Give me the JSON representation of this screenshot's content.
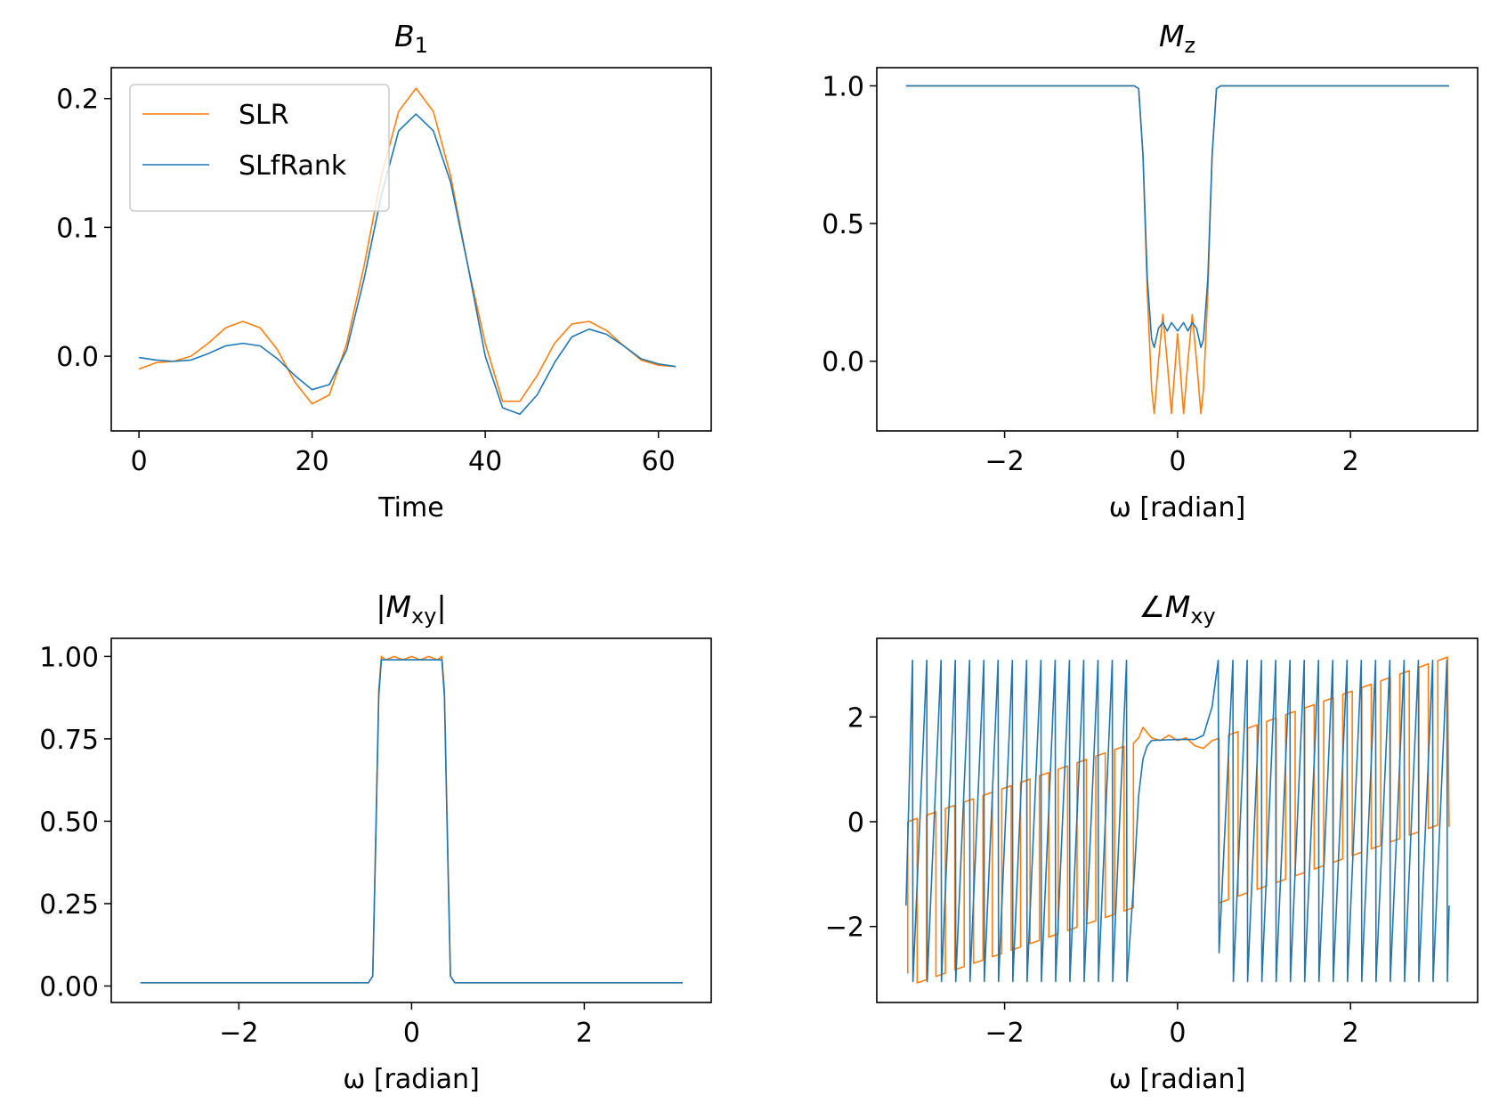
{
  "chart_data": [
    {
      "type": "line",
      "title": {
        "main": "B",
        "sub": "1"
      },
      "xlabel": "Time",
      "x": [
        0,
        2,
        4,
        6,
        8,
        10,
        12,
        14,
        16,
        18,
        20,
        22,
        24,
        26,
        28,
        30,
        32,
        34,
        36,
        38,
        40,
        42,
        44,
        46,
        48,
        50,
        52,
        54,
        56,
        58,
        60,
        62
      ],
      "series": [
        {
          "name": "SLR",
          "color": "#ff7f0e",
          "values": [
            -0.01,
            -0.005,
            -0.004,
            0.0,
            0.01,
            0.022,
            0.027,
            0.022,
            0.005,
            -0.02,
            -0.037,
            -0.03,
            0.01,
            0.07,
            0.14,
            0.19,
            0.208,
            0.19,
            0.14,
            0.07,
            0.01,
            -0.035,
            -0.035,
            -0.015,
            0.01,
            0.025,
            0.027,
            0.02,
            0.008,
            -0.003,
            -0.007,
            -0.008
          ]
        },
        {
          "name": "SLfRank",
          "color": "#1f77b4",
          "values": [
            -0.001,
            -0.003,
            -0.004,
            -0.003,
            0.002,
            0.008,
            0.01,
            0.008,
            -0.002,
            -0.015,
            -0.026,
            -0.022,
            0.005,
            0.06,
            0.125,
            0.175,
            0.188,
            0.175,
            0.135,
            0.07,
            0.0,
            -0.04,
            -0.045,
            -0.03,
            -0.005,
            0.015,
            0.021,
            0.017,
            0.008,
            -0.002,
            -0.006,
            -0.008
          ]
        }
      ],
      "xlim": [
        -3.2,
        66.1
      ],
      "xticks": [
        0,
        20,
        40,
        60
      ],
      "ylim": [
        -0.058,
        0.224
      ],
      "yticks": [
        {
          "value": 0,
          "label": "0.0"
        },
        0.1,
        0.2
      ],
      "legend": "upper left"
    },
    {
      "type": "line",
      "title": {
        "main": "M",
        "sub": "z"
      },
      "xlabel": "ω [radian]",
      "x": [
        -3.14,
        -1,
        -0.5,
        -0.45,
        -0.4,
        -0.35,
        -0.3,
        -0.27,
        -0.22,
        -0.17,
        -0.12,
        -0.07,
        0,
        0.07,
        0.12,
        0.17,
        0.22,
        0.27,
        0.3,
        0.35,
        0.4,
        0.45,
        0.5,
        1,
        3.14
      ],
      "series": [
        {
          "color": "#ff7f0e",
          "values": [
            1,
            1,
            1,
            0.99,
            0.75,
            0.25,
            -0.1,
            -0.19,
            0.0,
            0.17,
            0.0,
            -0.19,
            0.1,
            -0.19,
            0.0,
            0.17,
            0.0,
            -0.19,
            -0.1,
            0.25,
            0.75,
            0.99,
            1,
            1,
            1
          ]
        },
        {
          "color": "#1f77b4",
          "values": [
            1,
            1,
            1,
            0.99,
            0.75,
            0.3,
            0.08,
            0.05,
            0.12,
            0.14,
            0.11,
            0.14,
            0.11,
            0.14,
            0.11,
            0.14,
            0.12,
            0.05,
            0.08,
            0.3,
            0.75,
            0.99,
            1,
            1,
            1
          ]
        }
      ],
      "xlim": [
        -3.478,
        3.47
      ],
      "xticks": [
        {
          "value": -2,
          "label": "−2"
        },
        0,
        2
      ],
      "ylim": [
        -0.253,
        1.066
      ],
      "yticks": [
        {
          "value": 0,
          "label": "0.0"
        },
        0.5,
        {
          "value": 1,
          "label": "1.0"
        }
      ]
    },
    {
      "type": "line",
      "title": {
        "pre": "|",
        "main": "M",
        "sub": "xy",
        "post": "|"
      },
      "xlabel": "ω [radian]",
      "x": [
        -3.14,
        -0.5,
        -0.45,
        -0.42,
        -0.38,
        -0.35,
        -0.3,
        -0.2,
        -0.1,
        0,
        0.1,
        0.2,
        0.3,
        0.35,
        0.38,
        0.42,
        0.45,
        0.5,
        3.14
      ],
      "series": [
        {
          "color": "#ff7f0e",
          "values": [
            0.01,
            0.01,
            0.03,
            0.4,
            0.9,
            1.0,
            0.99,
            1.0,
            0.99,
            1.0,
            0.99,
            1.0,
            0.99,
            1.0,
            0.9,
            0.4,
            0.03,
            0.01,
            0.01
          ]
        },
        {
          "color": "#1f77b4",
          "values": [
            0.01,
            0.01,
            0.03,
            0.38,
            0.88,
            0.99,
            0.99,
            0.99,
            0.99,
            0.99,
            0.99,
            0.99,
            0.99,
            0.99,
            0.88,
            0.38,
            0.03,
            0.01,
            0.01
          ]
        }
      ],
      "xlim": [
        -3.478,
        3.47
      ],
      "xticks": [
        {
          "value": -2,
          "label": "−2"
        },
        0,
        2
      ],
      "ylim": [
        -0.05,
        1.055
      ],
      "yticks": [
        {
          "value": 0,
          "label": "0.00"
        },
        {
          "value": 0.25,
          "label": "0.25"
        },
        {
          "value": 0.5,
          "label": "0.50"
        },
        {
          "value": 0.75,
          "label": "0.75"
        },
        {
          "value": 1,
          "label": "1.00"
        }
      ]
    },
    {
      "type": "line",
      "title": {
        "pre": "∠",
        "main": "M",
        "sub": "xy"
      },
      "xlabel": "ω [radian]",
      "series": [
        {
          "color": "#ff7f0e",
          "x": [
            -3.12,
            -3.12,
            -3.011,
            -3.011,
            -2.9025,
            -2.9025,
            -2.794,
            -2.794,
            -2.685,
            -2.685,
            -2.576,
            -2.576,
            -2.4675,
            -2.4675,
            -2.359,
            -2.359,
            -2.25,
            -2.25,
            -2.141,
            -2.141,
            -2.0325,
            -2.0325,
            -1.924,
            -1.924,
            -1.815,
            -1.815,
            -1.706,
            -1.706,
            -1.5975,
            -1.5975,
            -1.489,
            -1.489,
            -1.38,
            -1.38,
            -1.271,
            -1.271,
            -1.1625,
            -1.1625,
            -1.054,
            -1.054,
            -0.945,
            -0.945,
            -0.836,
            -0.836,
            -0.7275,
            -0.7275,
            -0.619,
            -0.619,
            -0.51,
            -0.51,
            -0.45,
            -0.4,
            -0.35,
            -0.3,
            -0.2,
            -0.1,
            0,
            0.1,
            0.2,
            0.3,
            0.4,
            0.48,
            0.48,
            0.59,
            0.59,
            0.7,
            0.7,
            0.81,
            0.81,
            0.92,
            0.92,
            1.03,
            1.03,
            1.14,
            1.14,
            1.25,
            1.25,
            1.36,
            1.36,
            1.47,
            1.47,
            1.58,
            1.58,
            1.69,
            1.69,
            1.8,
            1.8,
            1.91,
            1.91,
            2.02,
            2.02,
            2.13,
            2.13,
            2.24,
            2.24,
            2.35,
            2.35,
            2.46,
            2.46,
            2.57,
            2.57,
            2.68,
            2.68,
            2.79,
            2.79,
            2.9,
            2.9,
            3.01,
            3.01,
            3.12,
            3.14
          ],
          "values": [
            -2.9,
            0,
            0.063,
            -3.077,
            -3.015,
            0.125,
            0.187,
            -2.953,
            -2.89,
            0.25,
            0.313,
            -2.827,
            -2.765,
            0.375,
            0.438,
            -2.702,
            -2.64,
            0.5,
            0.563,
            -2.577,
            -2.515,
            0.625,
            0.688,
            -2.452,
            -2.39,
            0.75,
            0.813,
            -2.327,
            -2.265,
            0.875,
            0.938,
            -2.202,
            -2.14,
            1.0,
            1.063,
            -2.077,
            -2.015,
            1.125,
            1.188,
            -1.952,
            -1.89,
            1.25,
            1.313,
            -1.827,
            -1.765,
            1.375,
            1.438,
            -1.702,
            -1.64,
            1.5,
            1.6,
            1.8,
            1.7,
            1.6,
            1.55,
            1.65,
            1.55,
            1.6,
            1.45,
            1.4,
            1.55,
            1.59,
            -1.55,
            -1.485,
            1.655,
            1.719,
            -1.421,
            -1.356,
            1.784,
            1.848,
            -1.292,
            -1.227,
            1.913,
            1.978,
            -1.162,
            -1.098,
            2.042,
            2.107,
            -1.033,
            -0.969,
            2.171,
            2.236,
            -0.904,
            -0.839,
            2.301,
            2.365,
            -0.775,
            -0.71,
            2.43,
            2.494,
            -0.646,
            -0.581,
            2.559,
            2.624,
            -0.516,
            -0.452,
            2.688,
            2.753,
            -0.387,
            -0.323,
            2.817,
            2.882,
            -0.258,
            -0.194,
            2.946,
            3.011,
            -0.129,
            -0.064,
            3.076,
            3.14,
            -0.1
          ]
        },
        {
          "color": "#1f77b4",
          "x": [
            -3.14,
            -3.065,
            -3.06,
            -2.9,
            -2.895,
            -2.735,
            -2.73,
            -2.57,
            -2.565,
            -2.405,
            -2.4,
            -2.24,
            -2.235,
            -2.075,
            -2.07,
            -1.91,
            -1.905,
            -1.745,
            -1.74,
            -1.58,
            -1.575,
            -1.415,
            -1.41,
            -1.25,
            -1.245,
            -1.085,
            -1.08,
            -0.92,
            -0.915,
            -0.755,
            -0.75,
            -0.59,
            -0.585,
            -0.5,
            -0.45,
            -0.4,
            -0.35,
            -0.3,
            0,
            0.2,
            0.3,
            0.4,
            0.47,
            0.48,
            0.64,
            0.645,
            0.805,
            0.81,
            0.97,
            0.975,
            1.135,
            1.14,
            1.3,
            1.305,
            1.465,
            1.47,
            1.63,
            1.635,
            1.795,
            1.8,
            1.96,
            1.965,
            2.125,
            2.13,
            2.29,
            2.295,
            2.455,
            2.46,
            2.62,
            2.625,
            2.785,
            2.79,
            2.95,
            2.955,
            3.115,
            3.12,
            3.14
          ],
          "values": [
            -1.6,
            3.08,
            -3.05,
            3.08,
            -3.05,
            3.08,
            -3.05,
            3.08,
            -3.05,
            3.08,
            -3.05,
            3.08,
            -3.05,
            3.08,
            -3.05,
            3.08,
            -3.05,
            3.08,
            -3.05,
            3.08,
            -3.05,
            3.08,
            -3.05,
            3.08,
            -3.05,
            3.08,
            -3.05,
            3.08,
            -3.05,
            3.08,
            -3.05,
            3.08,
            -3.05,
            -1.0,
            0.5,
            1.2,
            1.45,
            1.55,
            1.57,
            1.57,
            1.65,
            2.2,
            3.08,
            -2.5,
            3.08,
            -3.05,
            3.08,
            -3.05,
            3.08,
            -3.05,
            3.08,
            -3.05,
            3.08,
            -3.05,
            3.08,
            -3.05,
            3.08,
            -3.05,
            3.08,
            -3.05,
            3.08,
            -3.05,
            3.08,
            -3.05,
            3.08,
            -3.05,
            3.08,
            -3.05,
            3.08,
            -3.05,
            3.08,
            -3.05,
            3.08,
            -3.05,
            3.08,
            -3.05,
            -1.6
          ]
        }
      ],
      "xlim": [
        -3.478,
        3.47
      ],
      "xticks": [
        {
          "value": -2,
          "label": "−2"
        },
        0,
        2
      ],
      "ylim": [
        -3.45,
        3.5
      ],
      "yticks": [
        {
          "value": -2,
          "label": "−2"
        },
        0,
        2
      ]
    }
  ]
}
